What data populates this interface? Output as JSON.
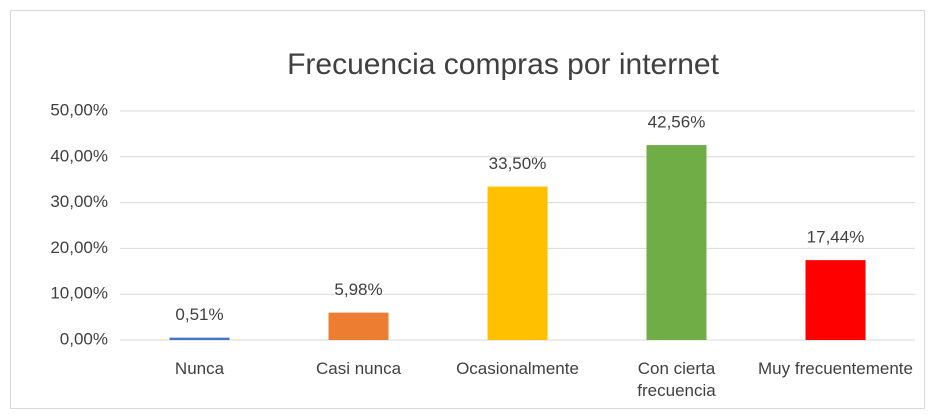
{
  "chart_data": {
    "type": "bar",
    "title": "Frecuencia compras por internet",
    "categories": [
      "Nunca",
      "Casi nunca",
      "Ocasionalmente",
      "Con cierta frecuencia",
      "Muy frecuentemente"
    ],
    "values": [
      0.51,
      5.98,
      33.5,
      42.56,
      17.44
    ],
    "value_labels": [
      "0,51%",
      "5,98%",
      "33,50%",
      "42,56%",
      "17,44%"
    ],
    "colors": [
      "#4472c4",
      "#ed7d31",
      "#ffc000",
      "#70ad47",
      "#ff0000"
    ],
    "ylim": [
      0,
      50
    ],
    "yticks": [
      {
        "value": 0,
        "label": "0,00%"
      },
      {
        "value": 10,
        "label": "10,00%"
      },
      {
        "value": 20,
        "label": "20,00%"
      },
      {
        "value": 30,
        "label": "30,00%"
      },
      {
        "value": 40,
        "label": "40,00%"
      },
      {
        "value": 50,
        "label": "50,00%"
      }
    ],
    "grid": true
  }
}
